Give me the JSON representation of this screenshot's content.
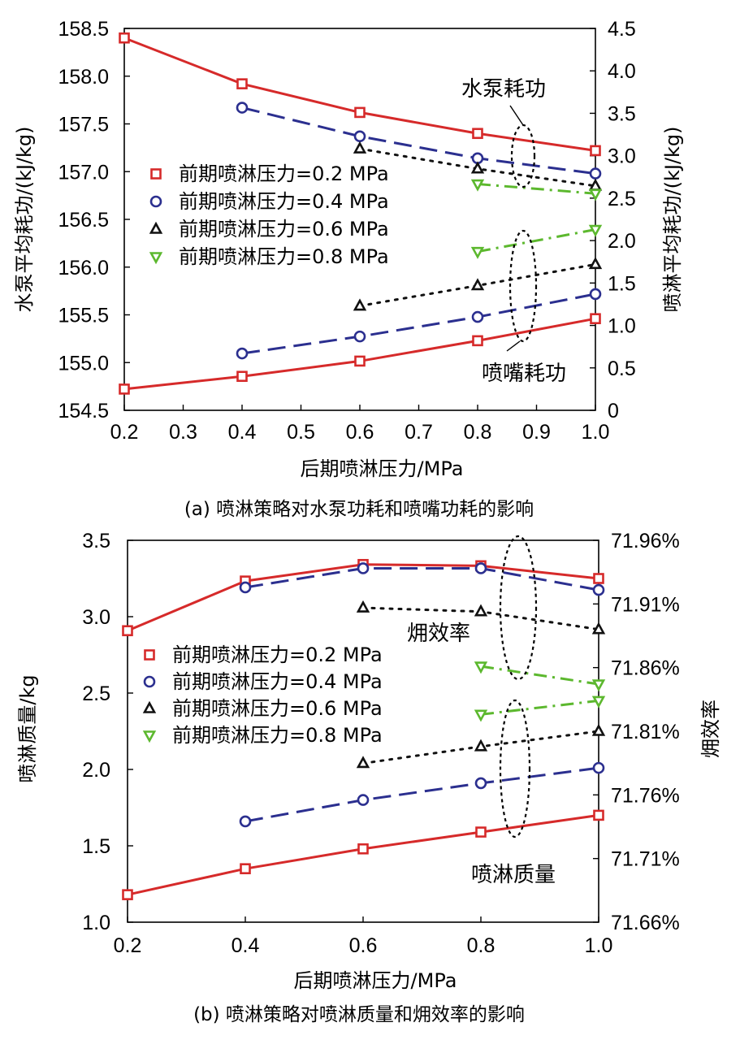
{
  "chart_data": [
    {
      "id": "a",
      "type": "line",
      "caption": "(a) 喷淋策略对水泵功耗和喷嘴功耗的影响",
      "xlabel": "后期喷淋压力/MPa",
      "ylabel": "水泵平均耗功/(kJ/kg)",
      "y2label": "喷淋平均耗功/(kJ/kg)",
      "xlim": [
        0.2,
        1.0
      ],
      "ylim": [
        154.5,
        158.5
      ],
      "y2lim": [
        0,
        4.5
      ],
      "xticks": [
        0.2,
        0.3,
        0.4,
        0.5,
        0.6,
        0.7,
        0.8,
        0.9,
        1.0
      ],
      "xtick_labels": [
        "0.2",
        "0.3",
        "0.4",
        "0.5",
        "0.6",
        "0.7",
        "0.8",
        "0.9",
        "1.0"
      ],
      "yticks": [
        154.5,
        155.0,
        155.5,
        156.0,
        156.5,
        157.0,
        157.5,
        158.0,
        158.5
      ],
      "ytick_labels": [
        "154.5",
        "155.0",
        "155.5",
        "156.0",
        "156.5",
        "157.0",
        "157.5",
        "158.0",
        "158.5"
      ],
      "y2ticks": [
        0,
        0.5,
        1.0,
        1.5,
        2.0,
        2.5,
        3.0,
        3.5,
        4.0,
        4.5
      ],
      "y2tick_labels": [
        "0",
        "0.5",
        "1.0",
        "1.5",
        "2.0",
        "2.5",
        "3.0",
        "3.5",
        "4.0",
        "4.5"
      ],
      "legend": {
        "location": "center-left",
        "entries": [
          {
            "label": "前期喷淋压力=0.2 MPa",
            "color": "#d62a2a",
            "marker": "square"
          },
          {
            "label": "前期喷淋压力=0.4 MPa",
            "color": "#2b2f8f",
            "marker": "circle"
          },
          {
            "label": "前期喷淋压力=0.6 MPa",
            "color": "#111111",
            "marker": "triangle-up"
          },
          {
            "label": "前期喷淋压力=0.8 MPa",
            "color": "#5cb82e",
            "marker": "triangle-down"
          }
        ]
      },
      "annotations": [
        {
          "text": "水泵耗功"
        },
        {
          "text": "喷嘴耗功"
        }
      ],
      "series": [
        {
          "name": "前期喷淋压力=0.2 MPa 水泵耗功",
          "axis": "left",
          "style": "solid",
          "color": "#d62a2a",
          "marker": "square",
          "x": [
            0.2,
            0.4,
            0.6,
            0.8,
            1.0
          ],
          "y": [
            158.4,
            157.92,
            157.62,
            157.4,
            157.22
          ]
        },
        {
          "name": "前期喷淋压力=0.4 MPa 水泵耗功",
          "axis": "left",
          "style": "dashed",
          "color": "#2b2f8f",
          "marker": "circle",
          "x": [
            0.4,
            0.6,
            0.8,
            1.0
          ],
          "y": [
            157.67,
            157.37,
            157.14,
            156.98
          ]
        },
        {
          "name": "前期喷淋压力=0.6 MPa 水泵耗功",
          "axis": "left",
          "style": "dotted",
          "color": "#111111",
          "marker": "triangle-up",
          "x": [
            0.6,
            0.8,
            1.0
          ],
          "y": [
            157.24,
            157.03,
            156.85
          ]
        },
        {
          "name": "前期喷淋压力=0.8 MPa 水泵耗功",
          "axis": "left",
          "style": "dashdot",
          "color": "#5cb82e",
          "marker": "triangle-down",
          "x": [
            0.8,
            1.0
          ],
          "y": [
            156.87,
            156.77
          ]
        },
        {
          "name": "前期喷淋压力=0.2 MPa 喷嘴耗功",
          "axis": "right",
          "style": "solid",
          "color": "#d62a2a",
          "marker": "square",
          "x": [
            0.2,
            0.4,
            0.6,
            0.8,
            1.0
          ],
          "y": [
            0.25,
            0.4,
            0.58,
            0.82,
            1.08
          ]
        },
        {
          "name": "前期喷淋压力=0.4 MPa 喷嘴耗功",
          "axis": "right",
          "style": "dashed",
          "color": "#2b2f8f",
          "marker": "circle",
          "x": [
            0.4,
            0.6,
            0.8,
            1.0
          ],
          "y": [
            0.67,
            0.87,
            1.1,
            1.37
          ]
        },
        {
          "name": "前期喷淋压力=0.6 MPa 喷嘴耗功",
          "axis": "right",
          "style": "dotted",
          "color": "#111111",
          "marker": "triangle-up",
          "x": [
            0.6,
            0.8,
            1.0
          ],
          "y": [
            1.23,
            1.47,
            1.72
          ]
        },
        {
          "name": "前期喷淋压力=0.8 MPa 喷嘴耗功",
          "axis": "right",
          "style": "dashdot",
          "color": "#5cb82e",
          "marker": "triangle-down",
          "x": [
            0.8,
            1.0
          ],
          "y": [
            1.87,
            2.13
          ]
        }
      ]
    },
    {
      "id": "b",
      "type": "line",
      "caption": "(b) 喷淋策略对喷淋质量和㶲效率的影响",
      "xlabel": "后期喷淋压力/MPa",
      "ylabel": "喷淋质量/kg",
      "y2label": "㶲效率",
      "xlim": [
        0.2,
        1.0
      ],
      "ylim": [
        1.0,
        3.5
      ],
      "y2lim": [
        71.66,
        71.96
      ],
      "xticks": [
        0.2,
        0.4,
        0.6,
        0.8,
        1.0
      ],
      "xtick_labels": [
        "0.2",
        "0.4",
        "0.6",
        "0.8",
        "1.0"
      ],
      "yticks": [
        1.0,
        1.5,
        2.0,
        2.5,
        3.0,
        3.5
      ],
      "ytick_labels": [
        "1.0",
        "1.5",
        "2.0",
        "2.5",
        "3.0",
        "3.5"
      ],
      "y2ticks": [
        71.66,
        71.71,
        71.76,
        71.81,
        71.86,
        71.91,
        71.96
      ],
      "y2tick_labels": [
        "71.66%",
        "71.71%",
        "71.76%",
        "71.81%",
        "71.86%",
        "71.91%",
        "71.96%"
      ],
      "legend": {
        "location": "center-left",
        "entries": [
          {
            "label": "前期喷淋压力=0.2 MPa",
            "color": "#d62a2a",
            "marker": "square"
          },
          {
            "label": "前期喷淋压力=0.4 MPa",
            "color": "#2b2f8f",
            "marker": "circle"
          },
          {
            "label": "前期喷淋压力=0.6 MPa",
            "color": "#111111",
            "marker": "triangle-up"
          },
          {
            "label": "前期喷淋压力=0.8 MPa",
            "color": "#5cb82e",
            "marker": "triangle-down"
          }
        ]
      },
      "annotations": [
        {
          "text": "㶲效率"
        },
        {
          "text": "喷淋质量"
        }
      ],
      "series": [
        {
          "name": "前期喷淋压力=0.2 MPa 㶲效率",
          "axis": "right",
          "style": "solid",
          "color": "#d62a2a",
          "marker": "square",
          "x": [
            0.2,
            0.4,
            0.6,
            0.8,
            1.0
          ],
          "y": [
            71.889,
            71.928,
            71.941,
            71.94,
            71.93
          ]
        },
        {
          "name": "前期喷淋压力=0.4 MPa 㶲效率",
          "axis": "right",
          "style": "dashed",
          "color": "#2b2f8f",
          "marker": "circle",
          "x": [
            0.4,
            0.6,
            0.8,
            1.0
          ],
          "y": [
            71.923,
            71.938,
            71.938,
            71.921
          ]
        },
        {
          "name": "前期喷淋压力=0.6 MPa 㶲效率",
          "axis": "right",
          "style": "dotted",
          "color": "#111111",
          "marker": "triangle-up",
          "x": [
            0.6,
            0.8,
            1.0
          ],
          "y": [
            71.907,
            71.904,
            71.89
          ]
        },
        {
          "name": "前期喷淋压力=0.8 MPa 㶲效率",
          "axis": "right",
          "style": "dashdot",
          "color": "#5cb82e",
          "marker": "triangle-down",
          "x": [
            0.8,
            1.0
          ],
          "y": [
            71.861,
            71.847
          ]
        },
        {
          "name": "前期喷淋压力=0.2 MPa 喷淋质量",
          "axis": "left",
          "style": "solid",
          "color": "#d62a2a",
          "marker": "square",
          "x": [
            0.2,
            0.4,
            0.6,
            0.8,
            1.0
          ],
          "y": [
            1.18,
            1.35,
            1.48,
            1.59,
            1.7
          ]
        },
        {
          "name": "前期喷淋压力=0.4 MPa 喷淋质量",
          "axis": "left",
          "style": "dashed",
          "color": "#2b2f8f",
          "marker": "circle",
          "x": [
            0.4,
            0.6,
            0.8,
            1.0
          ],
          "y": [
            1.66,
            1.8,
            1.91,
            2.01
          ]
        },
        {
          "name": "前期喷淋压力=0.6 MPa 喷淋质量",
          "axis": "left",
          "style": "dotted",
          "color": "#111111",
          "marker": "triangle-up",
          "x": [
            0.6,
            0.8,
            1.0
          ],
          "y": [
            2.04,
            2.15,
            2.25
          ]
        },
        {
          "name": "前期喷淋压力=0.8 MPa 喷淋质量",
          "axis": "left",
          "style": "dashdot",
          "color": "#5cb82e",
          "marker": "triangle-down",
          "x": [
            0.8,
            1.0
          ],
          "y": [
            2.36,
            2.45
          ]
        }
      ]
    }
  ]
}
